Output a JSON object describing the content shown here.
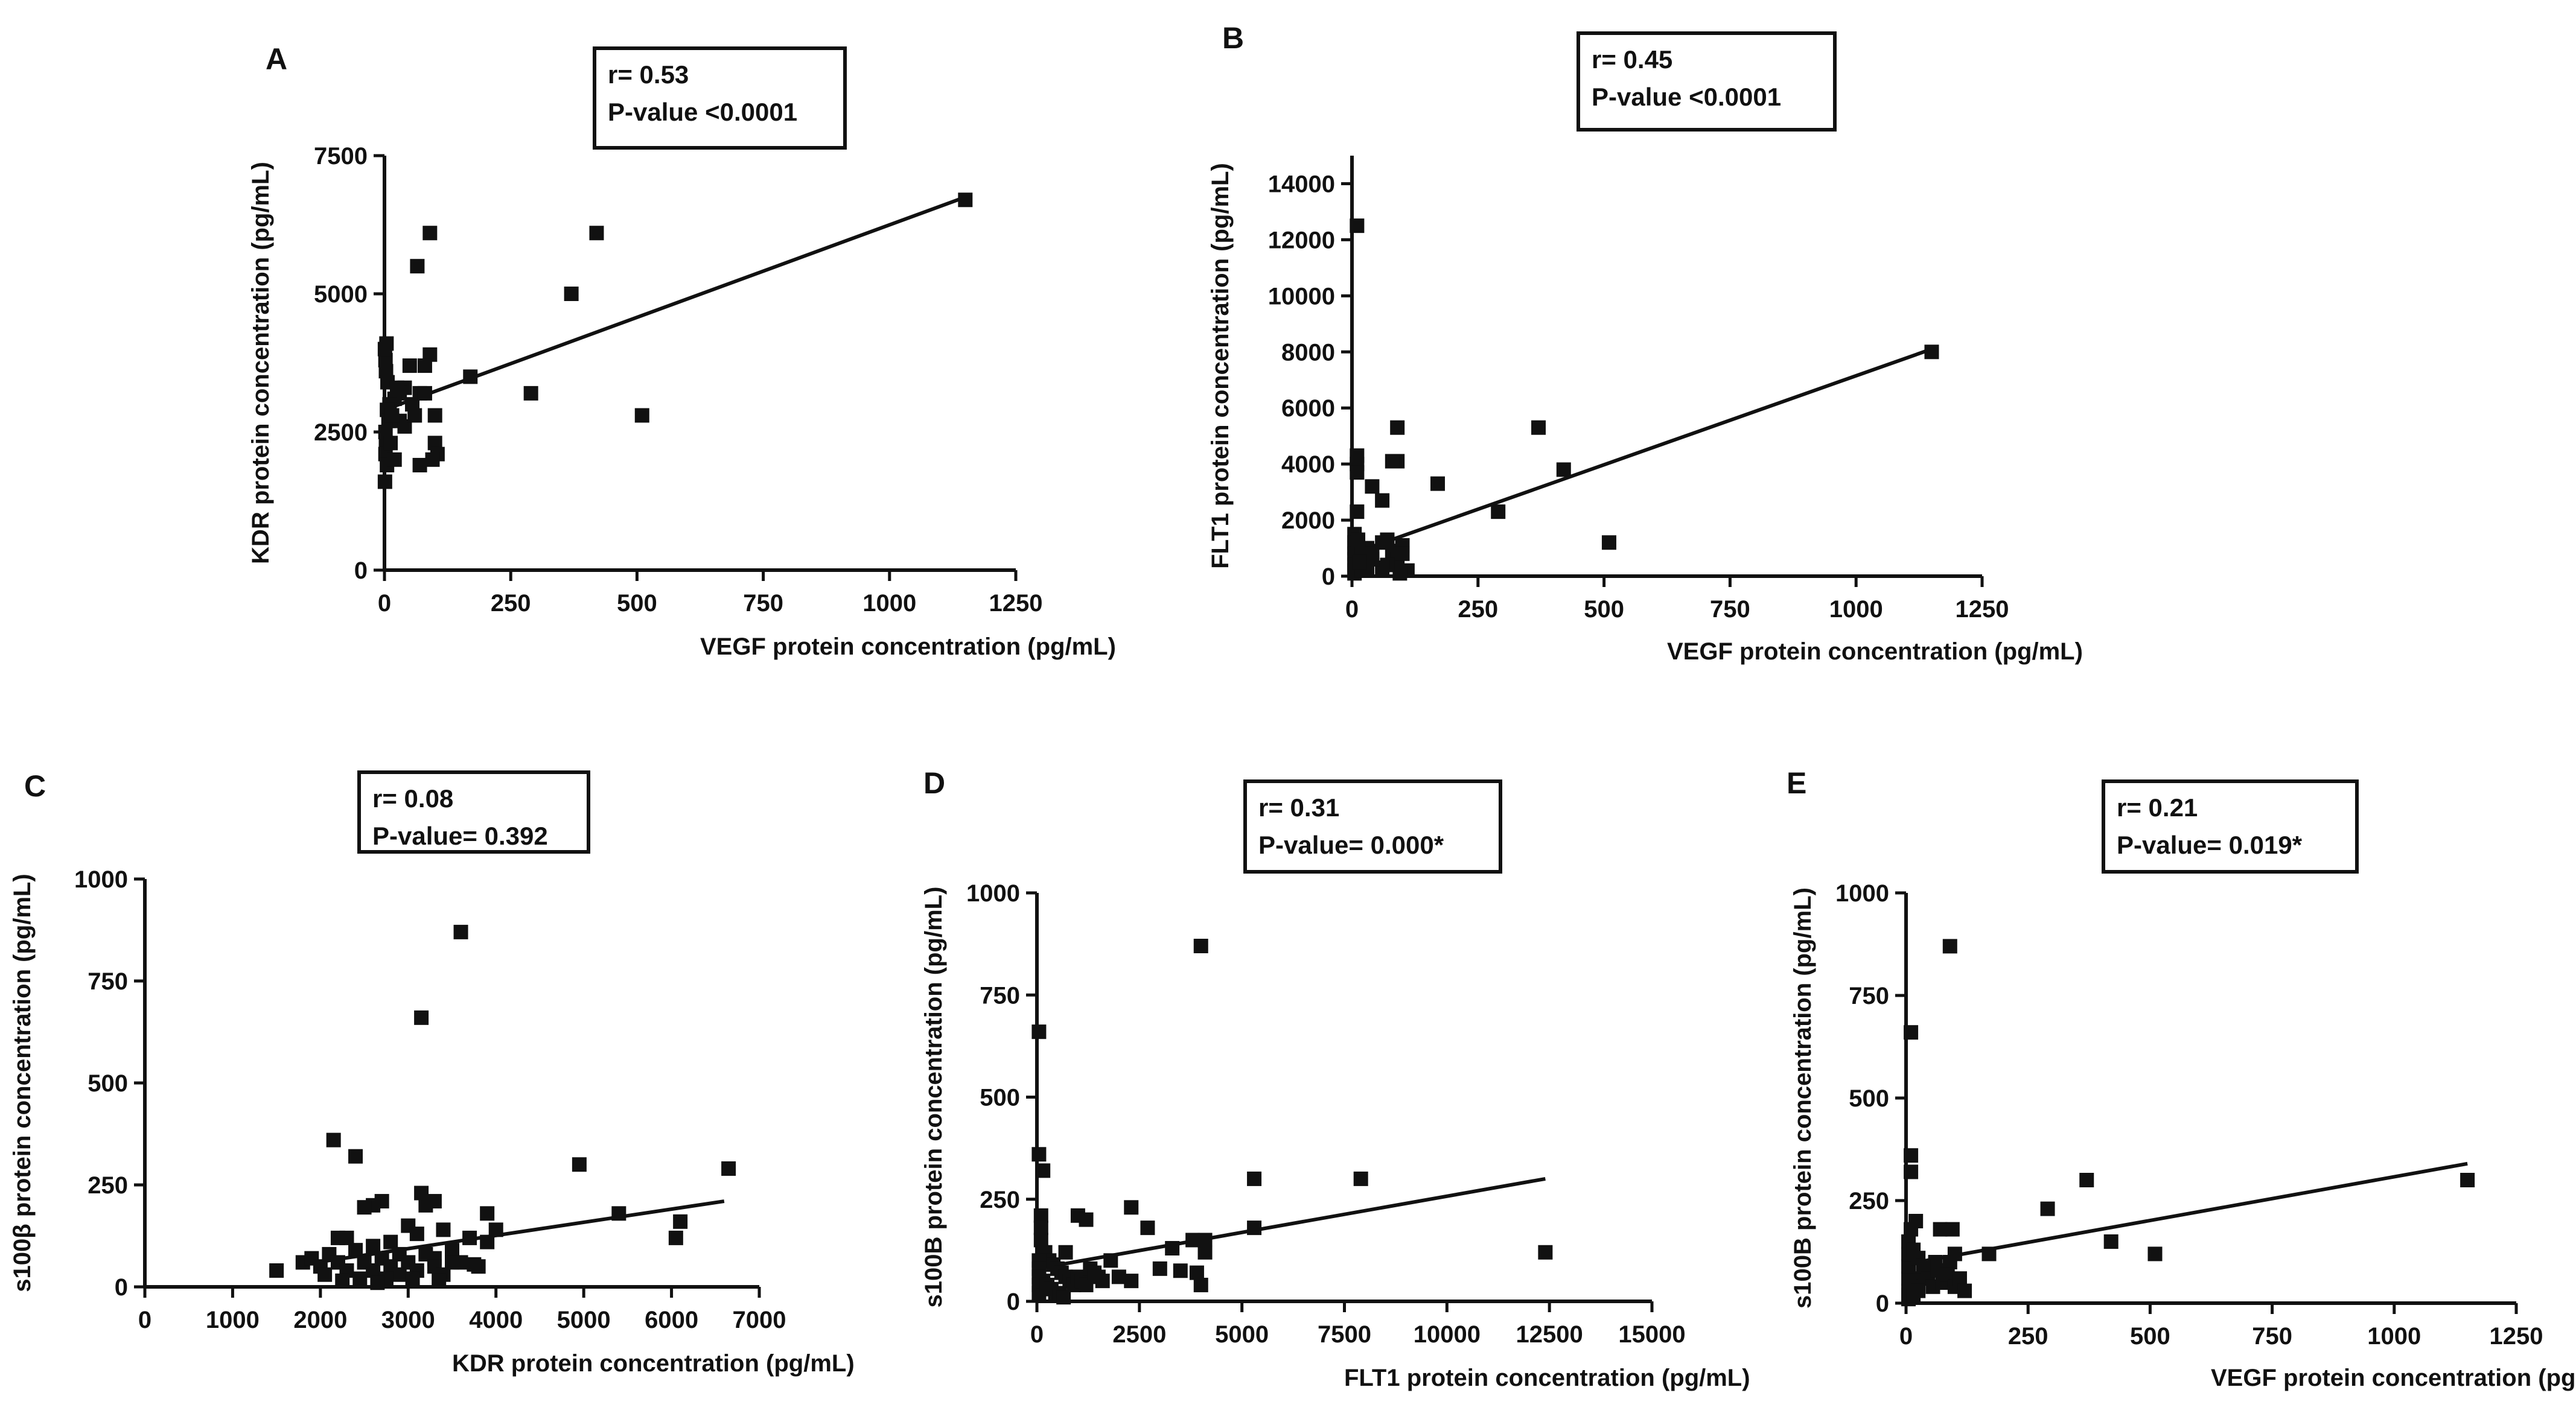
{
  "chart_data": [
    {
      "panel": "A",
      "type": "scatter",
      "xlabel": "VEGF protein concentration (pg/mL)",
      "ylabel": "KDR protein concentration (pg/mL)",
      "xlim": [
        0,
        1250
      ],
      "ylim": [
        0,
        7500
      ],
      "xticks": [
        "0",
        "250",
        "500",
        "750",
        "1000",
        "1250"
      ],
      "yticks": [
        "0",
        "2500",
        "5000",
        "7500"
      ],
      "stats": [
        "r= 0.53",
        "P-value <0.0001"
      ],
      "fit": [
        [
          0,
          2900
        ],
        [
          1150,
          6750
        ]
      ],
      "points": [
        [
          1150,
          6700
        ],
        [
          420,
          6100
        ],
        [
          90,
          6100
        ],
        [
          65,
          5500
        ],
        [
          370,
          5000
        ],
        [
          510,
          2800
        ],
        [
          290,
          3200
        ],
        [
          170,
          3500
        ],
        [
          90,
          3900
        ],
        [
          80,
          3700
        ],
        [
          50,
          3700
        ],
        [
          40,
          3300
        ],
        [
          30,
          3200
        ],
        [
          20,
          3100
        ],
        [
          10,
          3000
        ],
        [
          5,
          2900
        ],
        [
          3,
          3600
        ],
        [
          2,
          3800
        ],
        [
          1,
          4000
        ],
        [
          4,
          4100
        ],
        [
          6,
          3400
        ],
        [
          8,
          2700
        ],
        [
          2,
          2500
        ],
        [
          3,
          2300
        ],
        [
          2,
          2100
        ],
        [
          5,
          1900
        ],
        [
          1,
          1600
        ],
        [
          12,
          2300
        ],
        [
          20,
          2000
        ],
        [
          30,
          2700
        ],
        [
          40,
          2600
        ],
        [
          55,
          3000
        ],
        [
          60,
          2800
        ],
        [
          70,
          3200
        ],
        [
          80,
          3200
        ],
        [
          100,
          2800
        ],
        [
          100,
          2300
        ],
        [
          105,
          2100
        ],
        [
          95,
          2000
        ],
        [
          70,
          1900
        ],
        [
          15,
          2800
        ],
        [
          25,
          3300
        ]
      ]
    },
    {
      "panel": "B",
      "type": "scatter",
      "xlabel": "VEGF protein concentration (pg/mL)",
      "ylabel": "FLT1 protein concentration (pg/mL)",
      "xlim": [
        0,
        1250
      ],
      "ylim": [
        0,
        15000
      ],
      "xticks": [
        "0",
        "250",
        "500",
        "750",
        "1000",
        "1250"
      ],
      "yticks": [
        "0",
        "2000",
        "4000",
        "6000",
        "8000",
        "10000",
        "12000",
        "14000"
      ],
      "stats": [
        "r= 0.45",
        "P-value <0.0001"
      ],
      "fit": [
        [
          0,
          800
        ],
        [
          1150,
          8100
        ]
      ],
      "points": [
        [
          1150,
          8000
        ],
        [
          10,
          12500
        ],
        [
          370,
          5300
        ],
        [
          90,
          5300
        ],
        [
          420,
          3800
        ],
        [
          170,
          3300
        ],
        [
          90,
          4100
        ],
        [
          80,
          4100
        ],
        [
          10,
          4300
        ],
        [
          10,
          4000
        ],
        [
          10,
          3700
        ],
        [
          40,
          3200
        ],
        [
          60,
          2700
        ],
        [
          290,
          2300
        ],
        [
          10,
          2300
        ],
        [
          510,
          1200
        ],
        [
          5,
          1500
        ],
        [
          5,
          1200
        ],
        [
          5,
          1000
        ],
        [
          5,
          800
        ],
        [
          5,
          600
        ],
        [
          5,
          400
        ],
        [
          5,
          200
        ],
        [
          5,
          100
        ],
        [
          20,
          900
        ],
        [
          30,
          1000
        ],
        [
          40,
          800
        ],
        [
          60,
          1200
        ],
        [
          70,
          1300
        ],
        [
          80,
          900
        ],
        [
          90,
          600
        ],
        [
          100,
          1100
        ],
        [
          100,
          800
        ],
        [
          110,
          200
        ],
        [
          95,
          100
        ],
        [
          70,
          400
        ],
        [
          60,
          300
        ],
        [
          40,
          600
        ],
        [
          30,
          300
        ],
        [
          20,
          200
        ],
        [
          15,
          500
        ],
        [
          12,
          1300
        ]
      ]
    },
    {
      "panel": "C",
      "type": "scatter",
      "xlabel": "KDR protein concentration (pg/mL)",
      "ylabel": "s100β protein concentration (pg/mL)",
      "xlim": [
        0,
        7000
      ],
      "ylim": [
        0,
        1000
      ],
      "xticks": [
        "0",
        "1000",
        "2000",
        "3000",
        "4000",
        "5000",
        "6000",
        "7000"
      ],
      "yticks": [
        "0",
        "250",
        "500",
        "750",
        "1000"
      ],
      "stats": [
        "r= 0.08",
        "P-value= 0.392"
      ],
      "fit": [
        [
          1800,
          55
        ],
        [
          6600,
          210
        ]
      ],
      "points": [
        [
          3600,
          870
        ],
        [
          3150,
          660
        ],
        [
          2150,
          360
        ],
        [
          2400,
          320
        ],
        [
          4950,
          300
        ],
        [
          6650,
          290
        ],
        [
          3150,
          230
        ],
        [
          3300,
          210
        ],
        [
          2700,
          210
        ],
        [
          2600,
          200
        ],
        [
          2500,
          195
        ],
        [
          3200,
          200
        ],
        [
          5400,
          180
        ],
        [
          3900,
          180
        ],
        [
          6100,
          160
        ],
        [
          6050,
          120
        ],
        [
          3000,
          150
        ],
        [
          3400,
          140
        ],
        [
          3700,
          120
        ],
        [
          3900,
          110
        ],
        [
          2300,
          120
        ],
        [
          2200,
          120
        ],
        [
          2800,
          110
        ],
        [
          3100,
          130
        ],
        [
          3500,
          90
        ],
        [
          2600,
          100
        ],
        [
          2900,
          80
        ],
        [
          3300,
          70
        ],
        [
          3600,
          60
        ],
        [
          3800,
          50
        ],
        [
          1500,
          40
        ],
        [
          1800,
          60
        ],
        [
          1900,
          70
        ],
        [
          2000,
          50
        ],
        [
          2100,
          80
        ],
        [
          2200,
          60
        ],
        [
          2300,
          40
        ],
        [
          2400,
          90
        ],
        [
          2500,
          60
        ],
        [
          2600,
          40
        ],
        [
          2700,
          70
        ],
        [
          2800,
          50
        ],
        [
          2900,
          30
        ],
        [
          3000,
          60
        ],
        [
          3100,
          40
        ],
        [
          3200,
          80
        ],
        [
          3300,
          50
        ],
        [
          3400,
          30
        ],
        [
          3500,
          60
        ],
        [
          2450,
          20
        ],
        [
          2750,
          20
        ],
        [
          3050,
          20
        ],
        [
          3350,
          15
        ],
        [
          2250,
          15
        ],
        [
          2650,
          10
        ],
        [
          4000,
          140
        ],
        [
          3750,
          55
        ],
        [
          2050,
          30
        ]
      ]
    },
    {
      "panel": "D",
      "type": "scatter",
      "xlabel": "FLT1 protein concentration (pg/mL)",
      "ylabel": "s100B protein concentration (pg/mL)",
      "xlim": [
        0,
        15000
      ],
      "ylim": [
        0,
        1000
      ],
      "xticks": [
        "0",
        "2500",
        "5000",
        "7500",
        "10000",
        "12500",
        "15000"
      ],
      "yticks": [
        "0",
        "250",
        "500",
        "750",
        "1000"
      ],
      "stats": [
        "r= 0.31",
        "P-value= 0.000*"
      ],
      "fit": [
        [
          0,
          80
        ],
        [
          12400,
          300
        ]
      ],
      "points": [
        [
          4000,
          870
        ],
        [
          50,
          660
        ],
        [
          50,
          360
        ],
        [
          150,
          320
        ],
        [
          5300,
          300
        ],
        [
          7900,
          300
        ],
        [
          2300,
          230
        ],
        [
          100,
          210
        ],
        [
          1000,
          210
        ],
        [
          1200,
          200
        ],
        [
          2700,
          180
        ],
        [
          5300,
          180
        ],
        [
          4100,
          150
        ],
        [
          3800,
          150
        ],
        [
          3300,
          130
        ],
        [
          12400,
          120
        ],
        [
          4100,
          120
        ],
        [
          3000,
          80
        ],
        [
          3500,
          75
        ],
        [
          4000,
          40
        ],
        [
          3900,
          70
        ],
        [
          100,
          180
        ],
        [
          100,
          150
        ],
        [
          200,
          120
        ],
        [
          300,
          100
        ],
        [
          400,
          90
        ],
        [
          500,
          80
        ],
        [
          600,
          70
        ],
        [
          700,
          60
        ],
        [
          800,
          50
        ],
        [
          900,
          40
        ],
        [
          1000,
          60
        ],
        [
          1100,
          50
        ],
        [
          1200,
          40
        ],
        [
          1300,
          80
        ],
        [
          1400,
          70
        ],
        [
          1500,
          60
        ],
        [
          1600,
          50
        ],
        [
          50,
          100
        ],
        [
          50,
          80
        ],
        [
          50,
          60
        ],
        [
          50,
          40
        ],
        [
          50,
          20
        ],
        [
          150,
          50
        ],
        [
          250,
          40
        ],
        [
          350,
          30
        ],
        [
          450,
          20
        ],
        [
          550,
          15
        ],
        [
          650,
          10
        ],
        [
          2300,
          50
        ],
        [
          2000,
          60
        ],
        [
          1800,
          100
        ],
        [
          700,
          120
        ]
      ]
    },
    {
      "panel": "E",
      "type": "scatter",
      "xlabel": "VEGF protein concentration (pg/mL)",
      "ylabel": "s100B protein concentration (pg/mL)",
      "xlim": [
        0,
        1250
      ],
      "ylim": [
        0,
        1000
      ],
      "xticks": [
        "0",
        "250",
        "500",
        "750",
        "1000",
        "1250"
      ],
      "yticks": [
        "0",
        "250",
        "500",
        "750",
        "1000"
      ],
      "stats": [
        "r= 0.21",
        "P-value= 0.019*"
      ],
      "fit": [
        [
          0,
          95
        ],
        [
          1150,
          340
        ]
      ],
      "points": [
        [
          90,
          870
        ],
        [
          10,
          660
        ],
        [
          10,
          360
        ],
        [
          10,
          320
        ],
        [
          370,
          300
        ],
        [
          1150,
          300
        ],
        [
          290,
          230
        ],
        [
          20,
          200
        ],
        [
          10,
          180
        ],
        [
          70,
          180
        ],
        [
          95,
          180
        ],
        [
          420,
          150
        ],
        [
          170,
          120
        ],
        [
          510,
          120
        ],
        [
          100,
          120
        ],
        [
          90,
          100
        ],
        [
          60,
          100
        ],
        [
          50,
          80
        ],
        [
          40,
          70
        ],
        [
          30,
          60
        ],
        [
          20,
          50
        ],
        [
          10,
          40
        ],
        [
          5,
          30
        ],
        [
          5,
          20
        ],
        [
          5,
          10
        ],
        [
          5,
          60
        ],
        [
          5,
          90
        ],
        [
          5,
          120
        ],
        [
          5,
          150
        ],
        [
          15,
          130
        ],
        [
          25,
          110
        ],
        [
          35,
          90
        ],
        [
          45,
          60
        ],
        [
          55,
          40
        ],
        [
          65,
          80
        ],
        [
          75,
          50
        ],
        [
          85,
          70
        ],
        [
          100,
          40
        ],
        [
          110,
          60
        ],
        [
          120,
          30
        ],
        [
          15,
          20
        ],
        [
          25,
          30
        ]
      ]
    }
  ]
}
